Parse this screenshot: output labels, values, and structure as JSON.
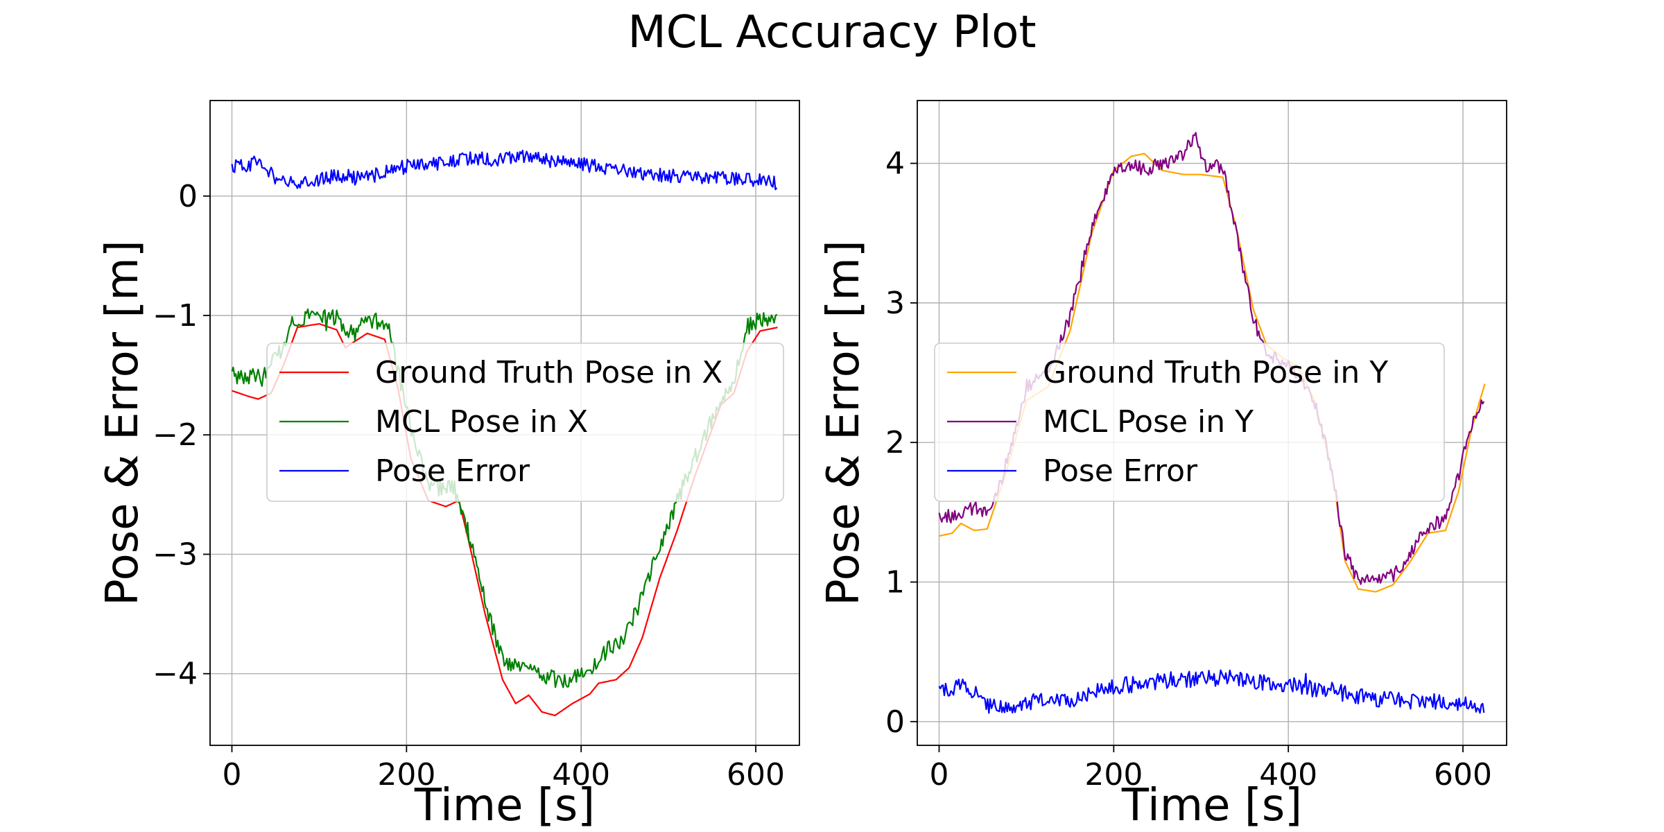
{
  "figure": {
    "title": "MCL Accuracy Plot"
  },
  "chart_data": [
    {
      "type": "line",
      "title": "",
      "xlabel": "Time [s]",
      "ylabel": "Pose & Error [m]",
      "xlim": [
        -25,
        650
      ],
      "ylim": [
        -4.6,
        0.8
      ],
      "xticks": [
        0,
        200,
        400,
        600
      ],
      "xtick_labels": [
        "0",
        "200",
        "400",
        "600"
      ],
      "yticks": [
        -4,
        -3,
        -2,
        -1,
        0
      ],
      "ytick_labels": [
        "−4",
        "−3",
        "−2",
        "−1",
        "0"
      ],
      "grid": true,
      "legend_position": "center",
      "series": [
        {
          "name": "Ground Truth Pose in X",
          "color": "#ff0000",
          "noise": 0,
          "points": [
            [
              0,
              -1.63
            ],
            [
              20,
              -1.68
            ],
            [
              30,
              -1.7
            ],
            [
              45,
              -1.65
            ],
            [
              60,
              -1.4
            ],
            [
              75,
              -1.1
            ],
            [
              100,
              -1.07
            ],
            [
              120,
              -1.12
            ],
            [
              130,
              -1.27
            ],
            [
              140,
              -1.22
            ],
            [
              155,
              -1.15
            ],
            [
              175,
              -1.2
            ],
            [
              190,
              -1.6
            ],
            [
              205,
              -2.2
            ],
            [
              225,
              -2.55
            ],
            [
              245,
              -2.6
            ],
            [
              260,
              -2.55
            ],
            [
              270,
              -2.85
            ],
            [
              290,
              -3.5
            ],
            [
              310,
              -4.05
            ],
            [
              325,
              -4.25
            ],
            [
              340,
              -4.18
            ],
            [
              355,
              -4.32
            ],
            [
              370,
              -4.35
            ],
            [
              390,
              -4.25
            ],
            [
              410,
              -4.17
            ],
            [
              420,
              -4.08
            ],
            [
              440,
              -4.05
            ],
            [
              455,
              -3.95
            ],
            [
              470,
              -3.7
            ],
            [
              490,
              -3.2
            ],
            [
              510,
              -2.8
            ],
            [
              530,
              -2.35
            ],
            [
              545,
              -2.05
            ],
            [
              560,
              -1.75
            ],
            [
              575,
              -1.65
            ],
            [
              590,
              -1.3
            ],
            [
              605,
              -1.13
            ],
            [
              625,
              -1.1
            ]
          ]
        },
        {
          "name": "MCL Pose in X",
          "color": "#008000",
          "noise": 0.07,
          "points": [
            [
              0,
              -1.5
            ],
            [
              20,
              -1.52
            ],
            [
              40,
              -1.48
            ],
            [
              55,
              -1.3
            ],
            [
              70,
              -1.05
            ],
            [
              90,
              -0.98
            ],
            [
              120,
              -1.02
            ],
            [
              135,
              -1.15
            ],
            [
              150,
              -1.03
            ],
            [
              165,
              -1.05
            ],
            [
              180,
              -1.1
            ],
            [
              200,
              -1.8
            ],
            [
              225,
              -2.45
            ],
            [
              255,
              -2.45
            ],
            [
              270,
              -2.8
            ],
            [
              290,
              -3.4
            ],
            [
              310,
              -3.9
            ],
            [
              330,
              -3.95
            ],
            [
              350,
              -3.98
            ],
            [
              370,
              -4.05
            ],
            [
              390,
              -4.05
            ],
            [
              410,
              -3.95
            ],
            [
              430,
              -3.8
            ],
            [
              450,
              -3.7
            ],
            [
              470,
              -3.35
            ],
            [
              490,
              -2.95
            ],
            [
              510,
              -2.55
            ],
            [
              530,
              -2.2
            ],
            [
              545,
              -1.95
            ],
            [
              560,
              -1.7
            ],
            [
              575,
              -1.55
            ],
            [
              590,
              -1.1
            ],
            [
              605,
              -1.02
            ],
            [
              625,
              -1.03
            ]
          ]
        },
        {
          "name": "Pose Error",
          "color": "#0000ff",
          "noise": 0.06,
          "points": [
            [
              0,
              0.24
            ],
            [
              30,
              0.28
            ],
            [
              60,
              0.1
            ],
            [
              90,
              0.12
            ],
            [
              120,
              0.18
            ],
            [
              150,
              0.14
            ],
            [
              180,
              0.22
            ],
            [
              210,
              0.26
            ],
            [
              240,
              0.28
            ],
            [
              270,
              0.32
            ],
            [
              300,
              0.3
            ],
            [
              330,
              0.33
            ],
            [
              360,
              0.3
            ],
            [
              390,
              0.27
            ],
            [
              420,
              0.25
            ],
            [
              450,
              0.22
            ],
            [
              480,
              0.18
            ],
            [
              510,
              0.17
            ],
            [
              540,
              0.14
            ],
            [
              570,
              0.15
            ],
            [
              600,
              0.13
            ],
            [
              625,
              0.1
            ]
          ]
        }
      ]
    },
    {
      "type": "line",
      "title": "",
      "xlabel": "Time [s]",
      "ylabel": "Pose & Error [m]",
      "xlim": [
        -25,
        650
      ],
      "ylim": [
        -0.17,
        4.45
      ],
      "xticks": [
        0,
        200,
        400,
        600
      ],
      "xtick_labels": [
        "0",
        "200",
        "400",
        "600"
      ],
      "yticks": [
        0,
        1,
        2,
        3,
        4
      ],
      "ytick_labels": [
        "0",
        "1",
        "2",
        "3",
        "4"
      ],
      "grid": true,
      "legend_position": "center",
      "series": [
        {
          "name": "Ground Truth Pose in Y",
          "color": "#ffa500",
          "noise": 0,
          "points": [
            [
              0,
              1.33
            ],
            [
              15,
              1.35
            ],
            [
              25,
              1.42
            ],
            [
              40,
              1.37
            ],
            [
              55,
              1.38
            ],
            [
              75,
              1.75
            ],
            [
              100,
              2.3
            ],
            [
              125,
              2.4
            ],
            [
              150,
              2.8
            ],
            [
              175,
              3.5
            ],
            [
              200,
              3.95
            ],
            [
              220,
              4.05
            ],
            [
              235,
              4.07
            ],
            [
              255,
              3.95
            ],
            [
              280,
              3.92
            ],
            [
              300,
              3.92
            ],
            [
              325,
              3.9
            ],
            [
              340,
              3.55
            ],
            [
              360,
              2.95
            ],
            [
              375,
              2.7
            ],
            [
              395,
              2.6
            ],
            [
              410,
              2.55
            ],
            [
              430,
              2.3
            ],
            [
              450,
              1.8
            ],
            [
              465,
              1.15
            ],
            [
              480,
              0.95
            ],
            [
              500,
              0.93
            ],
            [
              520,
              0.98
            ],
            [
              540,
              1.15
            ],
            [
              560,
              1.35
            ],
            [
              580,
              1.37
            ],
            [
              595,
              1.65
            ],
            [
              610,
              2.1
            ],
            [
              625,
              2.42
            ]
          ]
        },
        {
          "name": "MCL Pose in Y",
          "color": "#800080",
          "noise": 0.05,
          "points": [
            [
              0,
              1.47
            ],
            [
              20,
              1.47
            ],
            [
              40,
              1.53
            ],
            [
              60,
              1.5
            ],
            [
              75,
              1.8
            ],
            [
              100,
              2.4
            ],
            [
              125,
              2.5
            ],
            [
              150,
              2.9
            ],
            [
              175,
              3.55
            ],
            [
              200,
              3.95
            ],
            [
              220,
              4.0
            ],
            [
              235,
              3.95
            ],
            [
              255,
              4.0
            ],
            [
              280,
              4.05
            ],
            [
              293,
              4.22
            ],
            [
              305,
              3.98
            ],
            [
              325,
              3.98
            ],
            [
              340,
              3.5
            ],
            [
              360,
              2.9
            ],
            [
              375,
              2.6
            ],
            [
              395,
              2.6
            ],
            [
              410,
              2.5
            ],
            [
              430,
              2.3
            ],
            [
              450,
              1.8
            ],
            [
              465,
              1.2
            ],
            [
              480,
              1.02
            ],
            [
              500,
              1.0
            ],
            [
              520,
              1.05
            ],
            [
              540,
              1.2
            ],
            [
              560,
              1.4
            ],
            [
              580,
              1.45
            ],
            [
              595,
              1.75
            ],
            [
              610,
              2.15
            ],
            [
              625,
              2.35
            ]
          ]
        },
        {
          "name": "Pose Error",
          "color": "#0000ff",
          "noise": 0.06,
          "points": [
            [
              0,
              0.22
            ],
            [
              30,
              0.27
            ],
            [
              60,
              0.1
            ],
            [
              90,
              0.12
            ],
            [
              120,
              0.17
            ],
            [
              150,
              0.14
            ],
            [
              180,
              0.22
            ],
            [
              210,
              0.26
            ],
            [
              240,
              0.27
            ],
            [
              270,
              0.31
            ],
            [
              300,
              0.3
            ],
            [
              330,
              0.32
            ],
            [
              360,
              0.29
            ],
            [
              390,
              0.27
            ],
            [
              420,
              0.25
            ],
            [
              450,
              0.22
            ],
            [
              480,
              0.18
            ],
            [
              510,
              0.16
            ],
            [
              540,
              0.14
            ],
            [
              570,
              0.15
            ],
            [
              600,
              0.12
            ],
            [
              625,
              0.09
            ]
          ]
        }
      ]
    }
  ]
}
